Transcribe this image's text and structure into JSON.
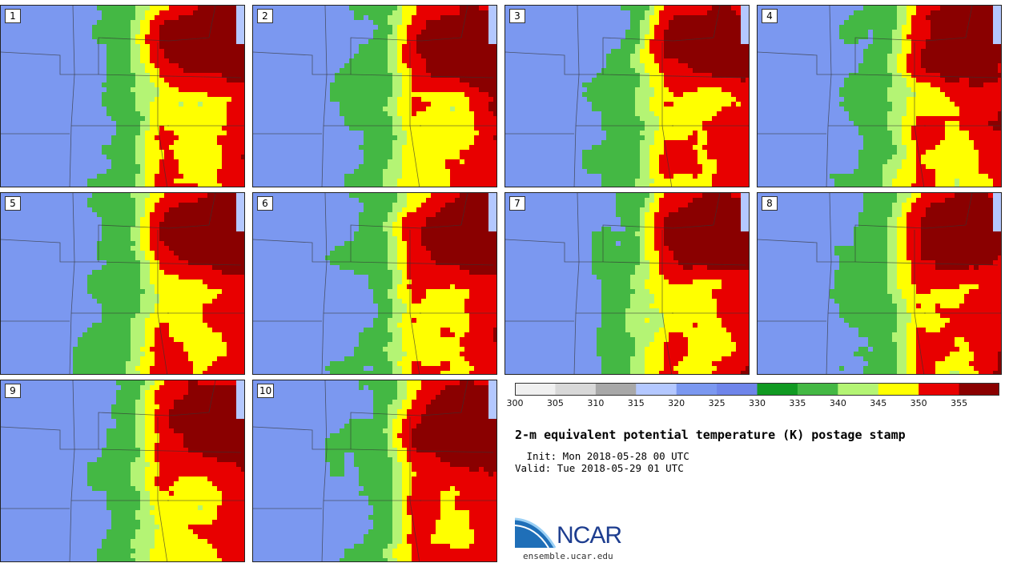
{
  "colors": {
    "bins": [
      "#f0f0f0",
      "#d8d8d8",
      "#a8a8a8",
      "#b4c8ff",
      "#7b98f0",
      "#6f85ea",
      "#119a22",
      "#44b844",
      "#b4f474",
      "#ffff00",
      "#e80000",
      "#8a0000"
    ]
  },
  "panels": [
    {
      "label": "1",
      "seed": 11
    },
    {
      "label": "2",
      "seed": 27
    },
    {
      "label": "3",
      "seed": 43
    },
    {
      "label": "4",
      "seed": 59
    },
    {
      "label": "5",
      "seed": 71
    },
    {
      "label": "6",
      "seed": 83
    },
    {
      "label": "7",
      "seed": 97
    },
    {
      "label": "8",
      "seed": 109
    },
    {
      "label": "9",
      "seed": 127
    },
    {
      "label": "10",
      "seed": 139
    }
  ],
  "colorbar": {
    "ticks": [
      "300",
      "305",
      "310",
      "315",
      "320",
      "325",
      "330",
      "335",
      "340",
      "345",
      "350",
      "355"
    ],
    "min": 300,
    "max": 360
  },
  "title": "2-m equivalent potential temperature (K) postage stamp",
  "init": " Init: Mon 2018-05-28 00 UTC",
  "valid": "Valid: Tue 2018-05-29 01 UTC",
  "logo": {
    "text": "NCAR",
    "url": "ensemble.ucar.edu"
  }
}
